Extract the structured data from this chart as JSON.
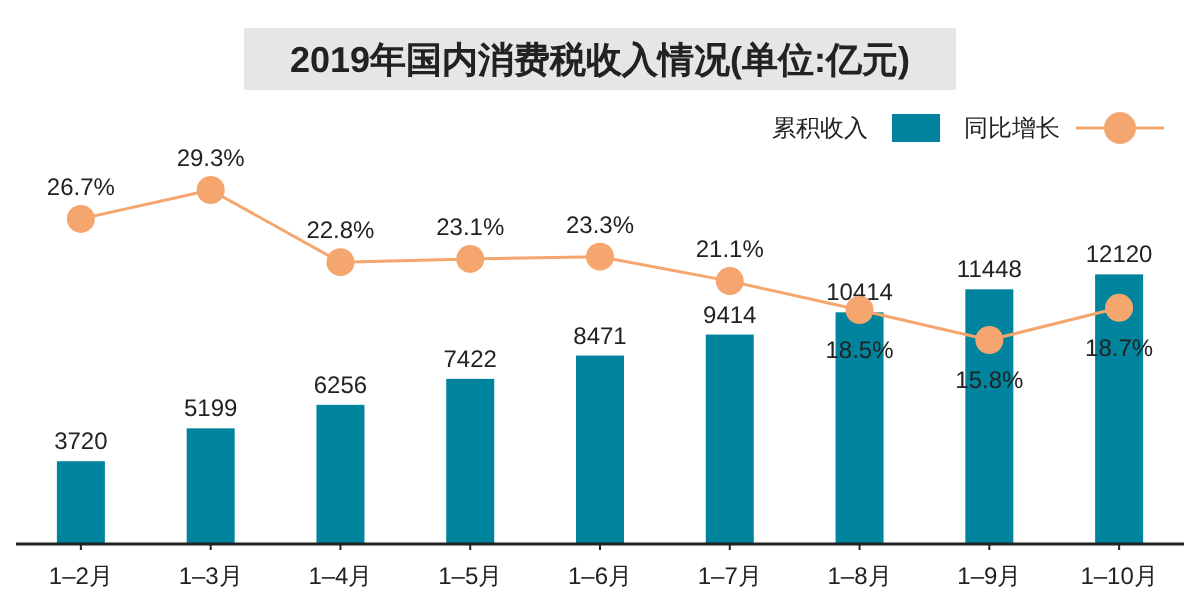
{
  "chart_data": {
    "type": "bar",
    "title": "2019年国内消费税收入情况(单位:亿元)",
    "categories": [
      "1–2月",
      "1–3月",
      "1–4月",
      "1–5月",
      "1–6月",
      "1–7月",
      "1–8月",
      "1–9月",
      "1–10月"
    ],
    "series": [
      {
        "name": "累积收入",
        "color": "#00849e",
        "values": [
          3720,
          5199,
          6256,
          7422,
          8471,
          9414,
          10414,
          11448,
          12120
        ]
      },
      {
        "name": "同比增长",
        "type": "line",
        "axis": "y2",
        "color": "#f5a66e",
        "marker": "circle",
        "value_labels": [
          "26.7%",
          "29.3%",
          "22.8%",
          "23.1%",
          "23.3%",
          "21.1%",
          "18.5%",
          "15.8%",
          "18.7%"
        ],
        "values": [
          26.7,
          29.3,
          22.8,
          23.1,
          23.3,
          21.1,
          18.5,
          15.8,
          18.7
        ]
      }
    ],
    "data_labels": true,
    "tick_labels": "x",
    "legend": "top right",
    "grid": false
  }
}
